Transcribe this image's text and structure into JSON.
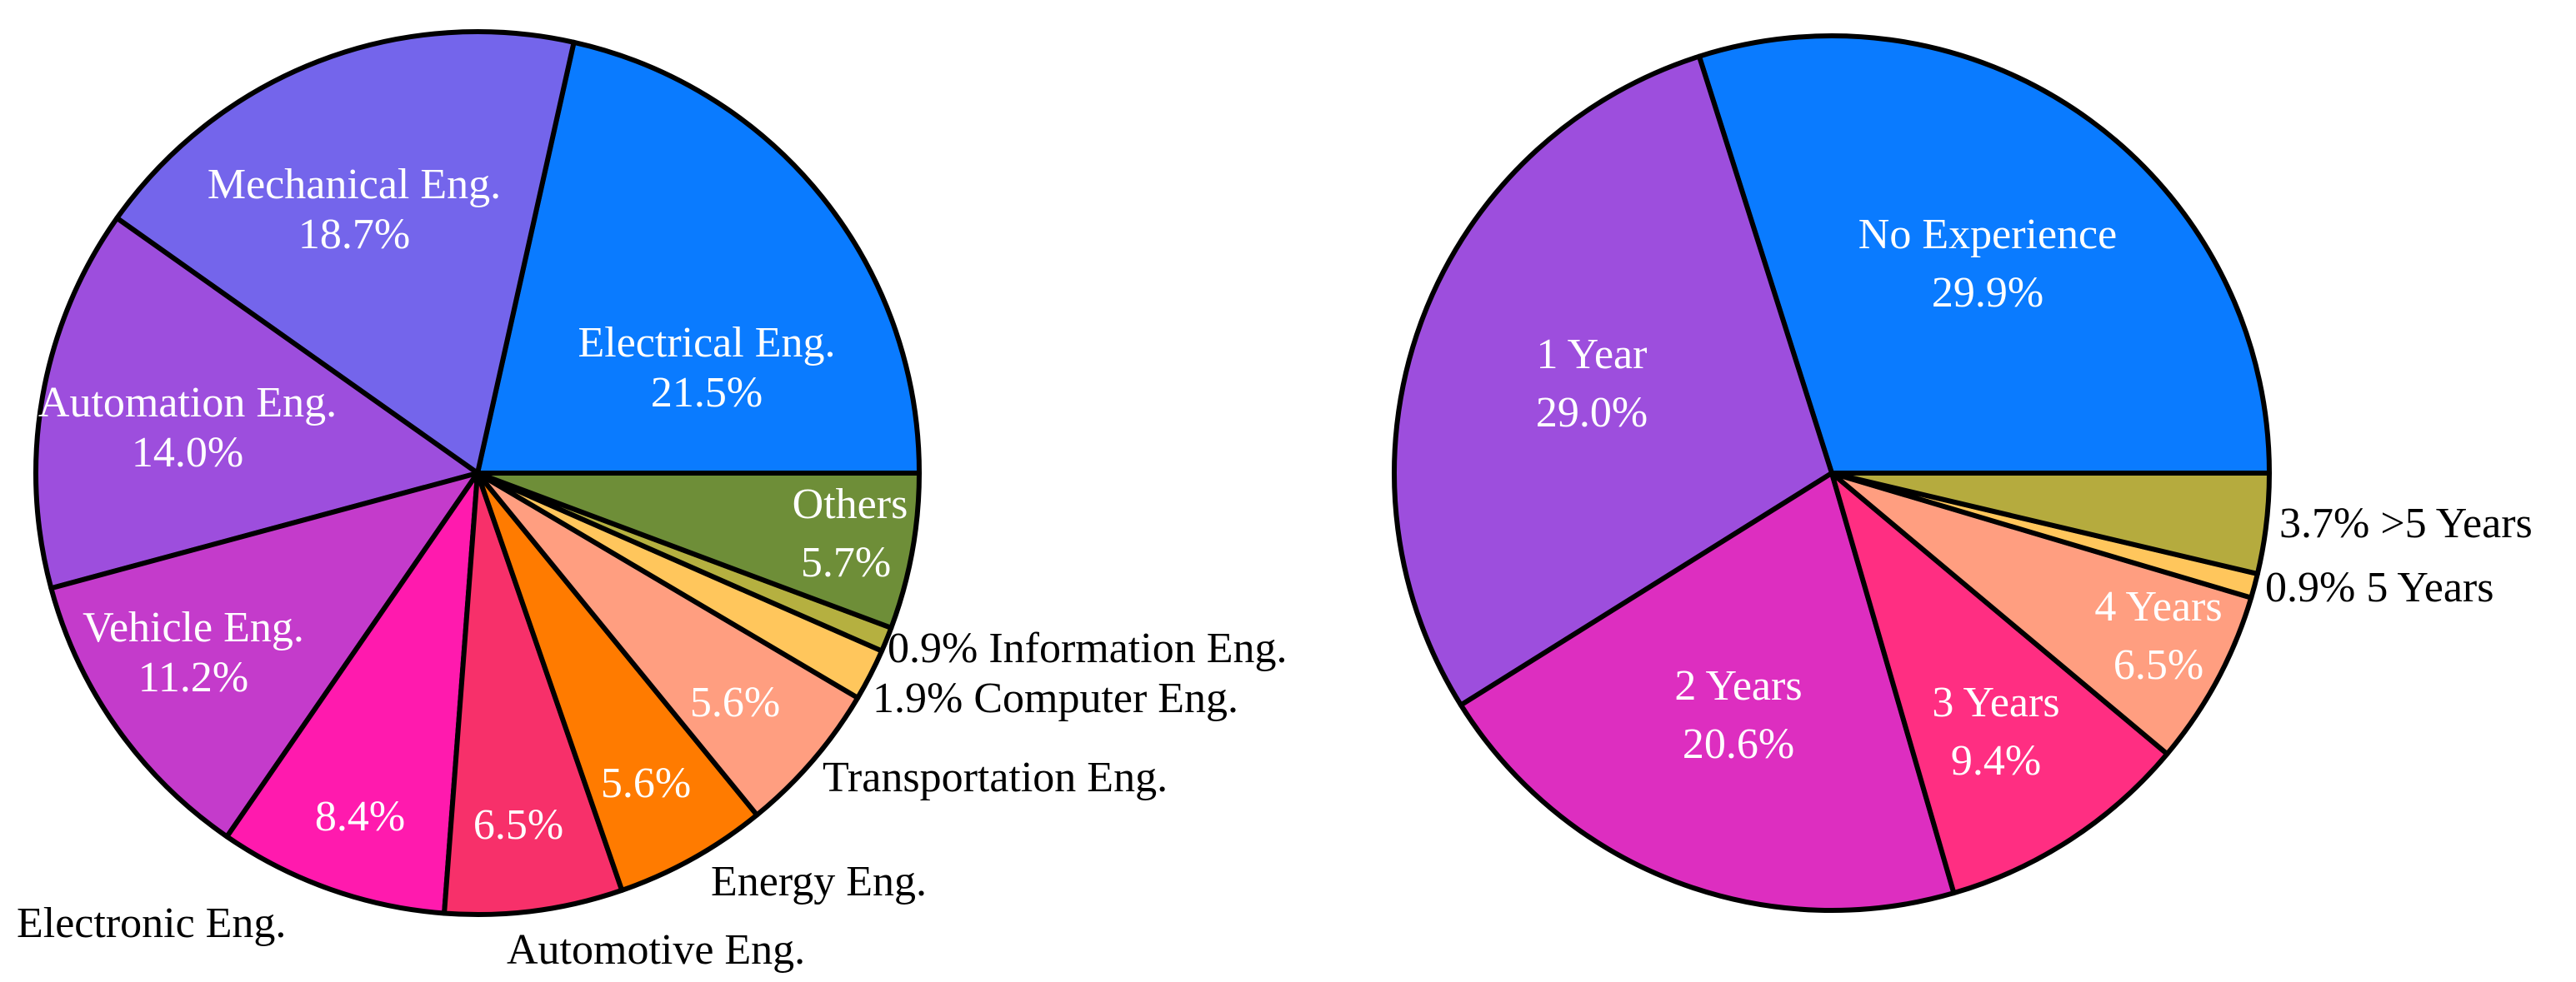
{
  "chart_data": [
    {
      "type": "pie",
      "title": "",
      "slices": [
        {
          "label": "Electrical Eng.",
          "value": 21.5,
          "pct_text": "21.5%",
          "color": "#0A7BFF"
        },
        {
          "label": "Mechanical Eng.",
          "value": 18.7,
          "pct_text": "18.7%",
          "color": "#7465EB"
        },
        {
          "label": "Automation Eng.",
          "value": 14.0,
          "pct_text": "14.0%",
          "color": "#9D4EDD"
        },
        {
          "label": "Vehicle Eng.",
          "value": 11.2,
          "pct_text": "11.2%",
          "color": "#C43BCB"
        },
        {
          "label": "Electronic Eng.",
          "value": 8.4,
          "pct_text": "8.4%",
          "color": "#FF1AAE"
        },
        {
          "label": "Automotive Eng.",
          "value": 6.5,
          "pct_text": "6.5%",
          "color": "#F7306A"
        },
        {
          "label": "Energy Eng.",
          "value": 5.6,
          "pct_text": "5.6%",
          "color": "#FF7B00"
        },
        {
          "label": "Transportation Eng.",
          "value": 5.6,
          "pct_text": "5.6%",
          "color": "#FF9E80"
        },
        {
          "label": "Computer Eng.",
          "value": 1.9,
          "pct_text": "1.9%",
          "color": "#FFC65C"
        },
        {
          "label": "Information Eng.",
          "value": 0.9,
          "pct_text": "0.9%",
          "color": "#B5B040"
        },
        {
          "label": "Others",
          "value": 5.7,
          "pct_text": "5.7%",
          "color": "#6E8E38"
        }
      ],
      "label_texts": {
        "electrical": [
          "Electrical Eng.",
          "21.5%"
        ],
        "mechanical": [
          "Mechanical Eng.",
          "18.7%"
        ],
        "automation": [
          "Automation Eng.",
          "14.0%"
        ],
        "vehicle": [
          "Vehicle Eng.",
          "11.2%"
        ],
        "electronic_pct": "8.4%",
        "electronic_name": "Electronic Eng.",
        "automotive_pct": "6.5%",
        "automotive_name": "Automotive Eng.",
        "energy_pct": "5.6%",
        "energy_name": "Energy Eng.",
        "transportation_pct": "5.6%",
        "transportation_name": "Transportation Eng.",
        "computer": "1.9% Computer Eng.",
        "information": "0.9% Information Eng.",
        "others": [
          "Others",
          "5.7%"
        ]
      }
    },
    {
      "type": "pie",
      "title": "",
      "slices": [
        {
          "label": "No Experience",
          "value": 29.9,
          "pct_text": "29.9%",
          "color": "#0A7BFF"
        },
        {
          "label": "1 Year",
          "value": 29.0,
          "pct_text": "29.0%",
          "color": "#9D4EDD"
        },
        {
          "label": "2 Years",
          "value": 20.6,
          "pct_text": "20.6%",
          "color": "#DD2EC0"
        },
        {
          "label": "3 Years",
          "value": 9.4,
          "pct_text": "9.4%",
          "color": "#FF2E82"
        },
        {
          "label": "4 Years",
          "value": 6.5,
          "pct_text": "6.5%",
          "color": "#FF9E80"
        },
        {
          "label": "5 Years",
          "value": 0.9,
          "pct_text": "0.9%",
          "color": "#FFC65C"
        },
        {
          "label": ">5 Years",
          "value": 3.7,
          "pct_text": "3.7%",
          "color": "#B5AB3E"
        }
      ],
      "label_texts": {
        "no_experience": [
          "No Experience",
          "29.9%"
        ],
        "one_year": [
          "1 Year",
          "29.0%"
        ],
        "two_years": [
          "2 Years",
          "20.6%"
        ],
        "three_years": [
          "3 Years",
          "9.4%"
        ],
        "four_years": [
          "4 Years",
          "6.5%"
        ],
        "five_years": "0.9% 5 Years",
        "more_five": "3.7% >5 Years"
      }
    }
  ]
}
